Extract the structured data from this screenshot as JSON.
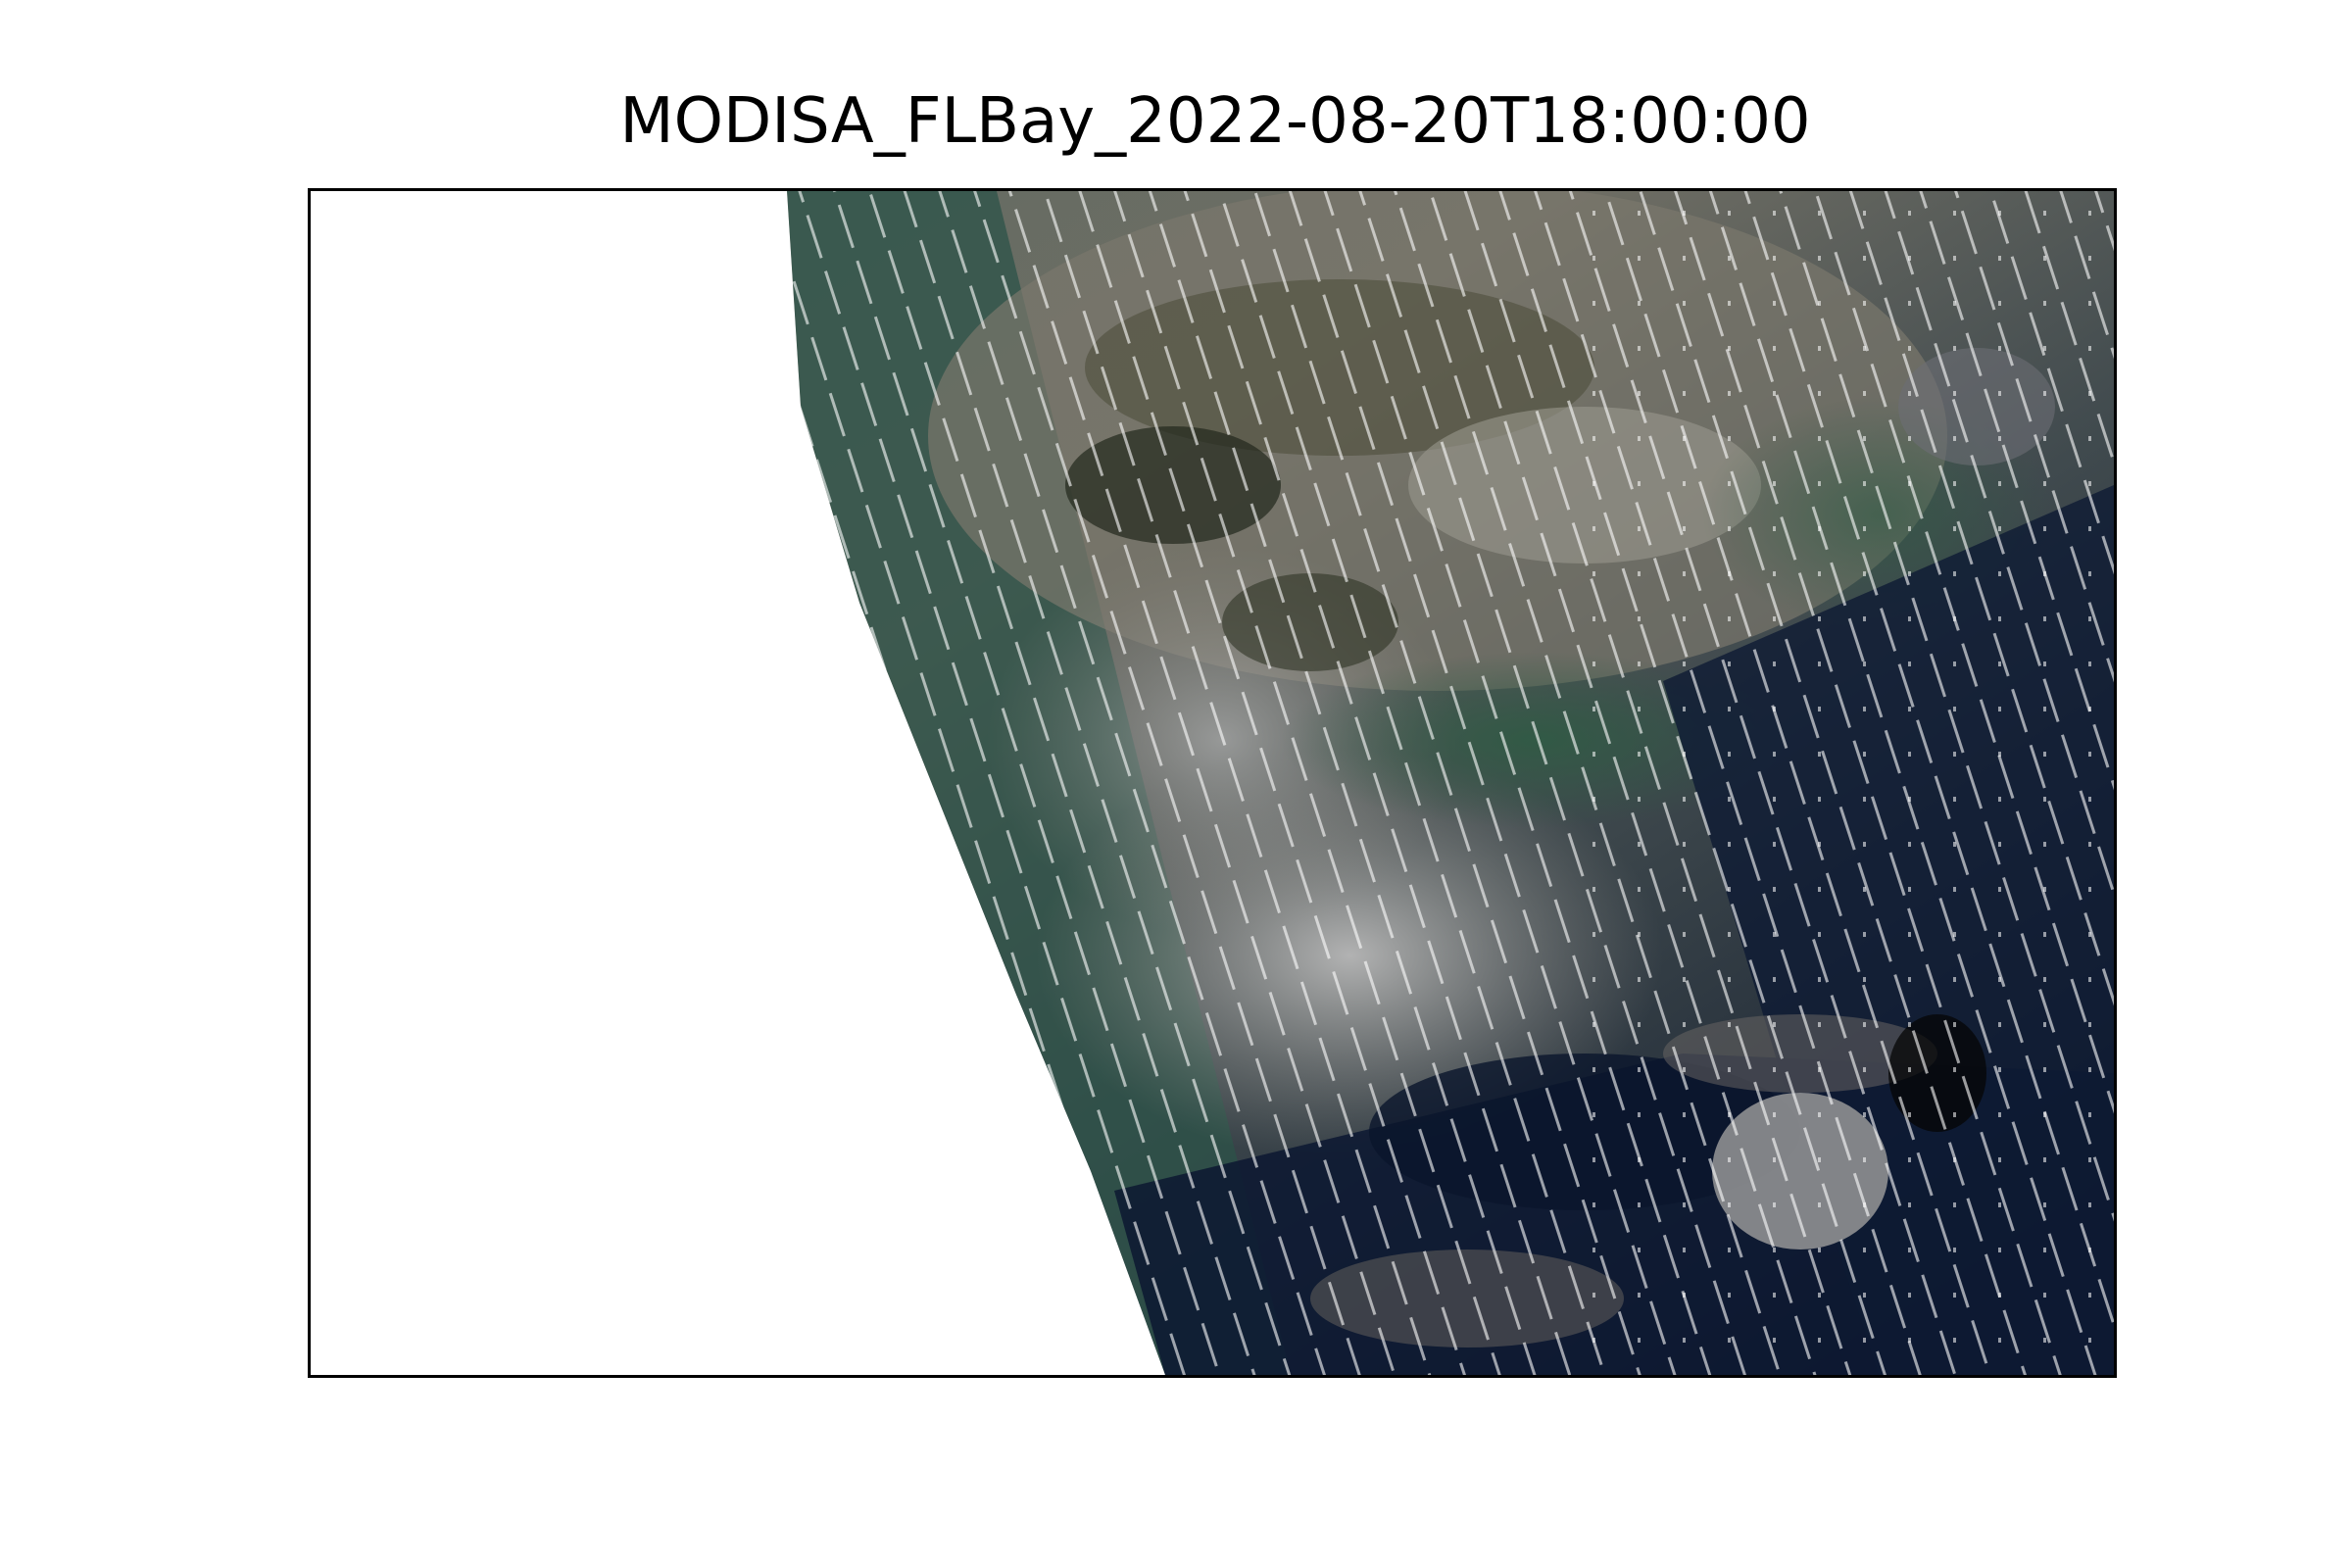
{
  "title": "MODISA_FLBay_2022-08-20T18:00:00",
  "image": {
    "description_kind": "true-color satellite swath",
    "colors": {
      "deep_water": "#0a1630",
      "green_water": "#1f4a40",
      "cloud_light": "#b4b4b4",
      "cloud_mid": "#7d7a6e",
      "olive": "#3a3a26",
      "background": "#ffffff",
      "frame": "#000000"
    }
  }
}
